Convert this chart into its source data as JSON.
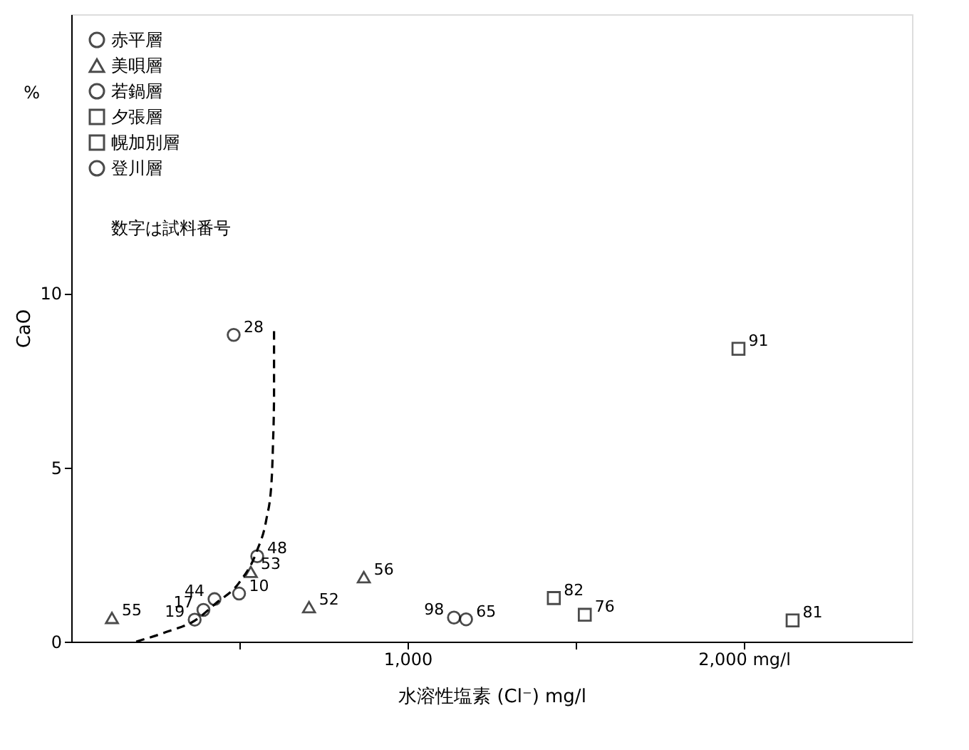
{
  "chart_data": {
    "type": "scatter",
    "xlabel": "水溶性塩素 (Cl⁻) mg/l",
    "ylabel": "CaO",
    "xlim": [
      0,
      2500
    ],
    "ylim": [
      0,
      18
    ],
    "xticks": [
      {
        "value": 500,
        "label": null
      },
      {
        "value": 1000,
        "label": "1,000"
      },
      {
        "value": 1500,
        "label": null
      },
      {
        "value": 2000,
        "label": "2,000 mg/l"
      }
    ],
    "yticks": [
      0,
      5,
      10
    ],
    "grid": false,
    "legend": "top left",
    "series": [
      {
        "name": "赤平層",
        "color": "#000000",
        "marker": "circle",
        "x": [
          483,
          367,
          393,
          426,
          499,
          553
        ],
        "values": [
          8.8,
          0.63,
          0.91,
          1.22,
          1.38,
          2.45
        ]
      },
      {
        "name": "美唄層",
        "color": "#000000",
        "marker": "triangle",
        "x": [
          121,
          534,
          707,
          870
        ],
        "values": [
          0.68,
          2.0,
          0.99,
          1.85
        ]
      },
      {
        "name": "若鍋層",
        "color": "#000000",
        "marker": "circle",
        "x": [
          1174
        ],
        "values": [
          0.64
        ]
      },
      {
        "name": "夕張層",
        "color": "#000000",
        "marker": "square",
        "x": [
          1527,
          2145
        ],
        "values": [
          0.77,
          0.61
        ]
      },
      {
        "name": "幌加別層",
        "color": "#000000",
        "marker": "square",
        "x": [
          1435,
          1984
        ],
        "values": [
          1.25,
          8.4
        ]
      },
      {
        "name": "登川層",
        "color": "#000000",
        "marker": "circle",
        "x": [
          1138
        ],
        "values": [
          0.69
        ]
      },
      {
        "type": "line",
        "color": "#000000",
        "line_style": "dashed",
        "marker": "none",
        "x": [
          193,
          290,
          367,
          430,
          500,
          552,
          580,
          595,
          600,
          603,
          603
        ],
        "values": [
          0,
          0.3,
          0.6,
          1.1,
          1.7,
          2.6,
          3.5,
          4.5,
          5.7,
          7,
          9
        ]
      }
    ],
    "annotations": [
      "%",
      "数字は試料番号",
      {
        "text": "28",
        "x": 483,
        "y": 8.8
      },
      {
        "text": "19",
        "x": 367,
        "y": 0.63
      },
      {
        "text": "17",
        "x": 393,
        "y": 0.91
      },
      {
        "text": "44",
        "x": 426,
        "y": 1.22
      },
      {
        "text": "10",
        "x": 499,
        "y": 1.38
      },
      {
        "text": "48",
        "x": 553,
        "y": 2.45
      },
      {
        "text": "55",
        "x": 121,
        "y": 0.68
      },
      {
        "text": "53",
        "x": 534,
        "y": 2.0
      },
      {
        "text": "52",
        "x": 707,
        "y": 0.99
      },
      {
        "text": "56",
        "x": 870,
        "y": 1.85
      },
      {
        "text": "65",
        "x": 1174,
        "y": 0.64
      },
      {
        "text": "76",
        "x": 1527,
        "y": 0.77
      },
      {
        "text": "81",
        "x": 2145,
        "y": 0.61
      },
      {
        "text": "82",
        "x": 1435,
        "y": 1.25
      },
      {
        "text": "91",
        "x": 1984,
        "y": 8.4
      },
      {
        "text": "98",
        "x": 1138,
        "y": 0.69
      }
    ]
  }
}
